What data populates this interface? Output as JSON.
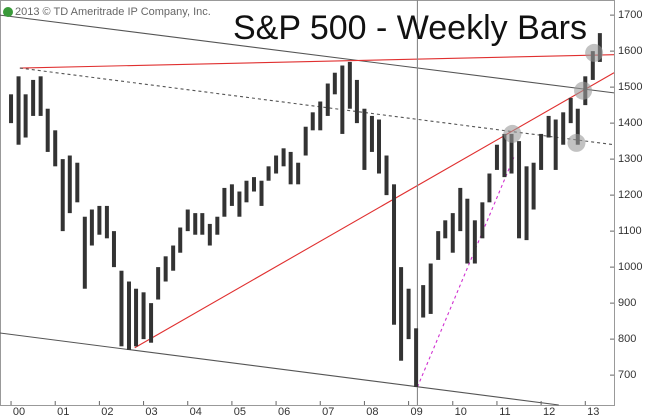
{
  "chart_data": {
    "type": "hilo",
    "title": "S&P 500 - Weekly Bars",
    "copyright": "2013 © TD Ameritrade IP Company, Inc.",
    "color": "#333333",
    "xlim": [
      1999.75,
      2013.65
    ],
    "ylim": [
      617,
      1742
    ],
    "xticks": [
      {
        "value": 2000,
        "label": "00"
      },
      {
        "value": 2001,
        "label": "01"
      },
      {
        "value": 2002,
        "label": "02"
      },
      {
        "value": 2003,
        "label": "03"
      },
      {
        "value": 2004,
        "label": "04"
      },
      {
        "value": 2005,
        "label": "05"
      },
      {
        "value": 2006,
        "label": "06"
      },
      {
        "value": 2007,
        "label": "07"
      },
      {
        "value": 2008,
        "label": "08"
      },
      {
        "value": 2009,
        "label": "09"
      },
      {
        "value": 2010,
        "label": "10"
      },
      {
        "value": 2011,
        "label": "11"
      },
      {
        "value": 2012,
        "label": "12"
      },
      {
        "value": 2013,
        "label": "13"
      }
    ],
    "yticks": [
      700,
      800,
      900,
      1000,
      1100,
      1200,
      1300,
      1400,
      1500,
      1600,
      1700
    ],
    "x": [
      2000.0,
      2000.17,
      2000.33,
      2000.5,
      2000.67,
      2000.83,
      2001.0,
      2001.17,
      2001.33,
      2001.5,
      2001.67,
      2001.83,
      2002.0,
      2002.17,
      2002.33,
      2002.5,
      2002.67,
      2002.83,
      2003.0,
      2003.17,
      2003.33,
      2003.5,
      2003.67,
      2003.83,
      2004.0,
      2004.17,
      2004.33,
      2004.5,
      2004.67,
      2004.83,
      2005.0,
      2005.17,
      2005.33,
      2005.5,
      2005.67,
      2005.83,
      2006.0,
      2006.17,
      2006.33,
      2006.5,
      2006.67,
      2006.83,
      2007.0,
      2007.17,
      2007.33,
      2007.5,
      2007.67,
      2007.83,
      2008.0,
      2008.17,
      2008.33,
      2008.5,
      2008.67,
      2008.83,
      2009.0,
      2009.17,
      2009.33,
      2009.5,
      2009.67,
      2009.83,
      2010.0,
      2010.17,
      2010.33,
      2010.5,
      2010.67,
      2010.83,
      2011.0,
      2011.17,
      2011.33,
      2011.5,
      2011.67,
      2011.83,
      2012.0,
      2012.17,
      2012.33,
      2012.5,
      2012.67,
      2012.83,
      2013.0,
      2013.17,
      2013.33
    ],
    "high": [
      1480,
      1530,
      1480,
      1520,
      1530,
      1440,
      1380,
      1300,
      1310,
      1290,
      1140,
      1160,
      1170,
      1170,
      1100,
      990,
      960,
      940,
      930,
      900,
      1000,
      1030,
      1060,
      1110,
      1160,
      1150,
      1150,
      1120,
      1140,
      1220,
      1230,
      1210,
      1240,
      1250,
      1240,
      1280,
      1310,
      1330,
      1320,
      1290,
      1390,
      1430,
      1460,
      1510,
      1540,
      1560,
      1570,
      1520,
      1440,
      1420,
      1410,
      1310,
      1230,
      1000,
      940,
      830,
      950,
      1010,
      1100,
      1130,
      1150,
      1220,
      1190,
      1130,
      1180,
      1260,
      1340,
      1370,
      1370,
      1350,
      1280,
      1290,
      1370,
      1420,
      1410,
      1430,
      1470,
      1440,
      1530,
      1600,
      1650
    ],
    "low": [
      1400,
      1340,
      1360,
      1420,
      1420,
      1320,
      1280,
      1100,
      1150,
      1180,
      940,
      1060,
      1090,
      1080,
      1000,
      780,
      770,
      780,
      800,
      790,
      910,
      960,
      990,
      1040,
      1100,
      1090,
      1090,
      1060,
      1090,
      1140,
      1170,
      1140,
      1180,
      1210,
      1170,
      1240,
      1260,
      1280,
      1230,
      1230,
      1310,
      1380,
      1380,
      1420,
      1480,
      1370,
      1440,
      1400,
      1270,
      1320,
      1260,
      1200,
      840,
      740,
      800,
      667,
      860,
      870,
      1020,
      1080,
      1040,
      1100,
      1010,
      1010,
      1080,
      1180,
      1270,
      1250,
      1260,
      1080,
      1075,
      1160,
      1270,
      1360,
      1270,
      1340,
      1400,
      1340,
      1450,
      1520,
      1570
    ],
    "lines": [
      {
        "x": [
          1999.75,
          2013.65
        ],
        "y": [
          1700,
          1484
        ],
        "color": "#555555",
        "style": "solid"
      },
      {
        "x": [
          1999.75,
          2012.4
        ],
        "y": [
          817,
          617
        ],
        "color": "#555555",
        "style": "solid"
      },
      {
        "x": [
          2000.2,
          2013.65
        ],
        "y": [
          1553,
          1590
        ],
        "color": "#e03030",
        "style": "solid"
      },
      {
        "x": [
          2000.2,
          2013.65
        ],
        "y": [
          1553,
          1340
        ],
        "color": "#555555",
        "style": "dashed"
      },
      {
        "x": [
          2002.8,
          2013.65
        ],
        "y": [
          776,
          1540
        ],
        "color": "#e03030",
        "style": "solid"
      },
      {
        "x": [
          2009.2,
          2011.4
        ],
        "y": [
          667,
          1310
        ],
        "color": "#d030d0",
        "style": "dashed"
      },
      {
        "x": [
          2009.2,
          2009.2
        ],
        "y": [
          617,
          1742
        ],
        "color": "#888888",
        "style": "solid"
      }
    ],
    "circles": {
      "x": [
        2011.35,
        2012.8,
        2012.95,
        2013.2
      ],
      "y": [
        1370,
        1345,
        1490,
        1595
      ]
    }
  }
}
